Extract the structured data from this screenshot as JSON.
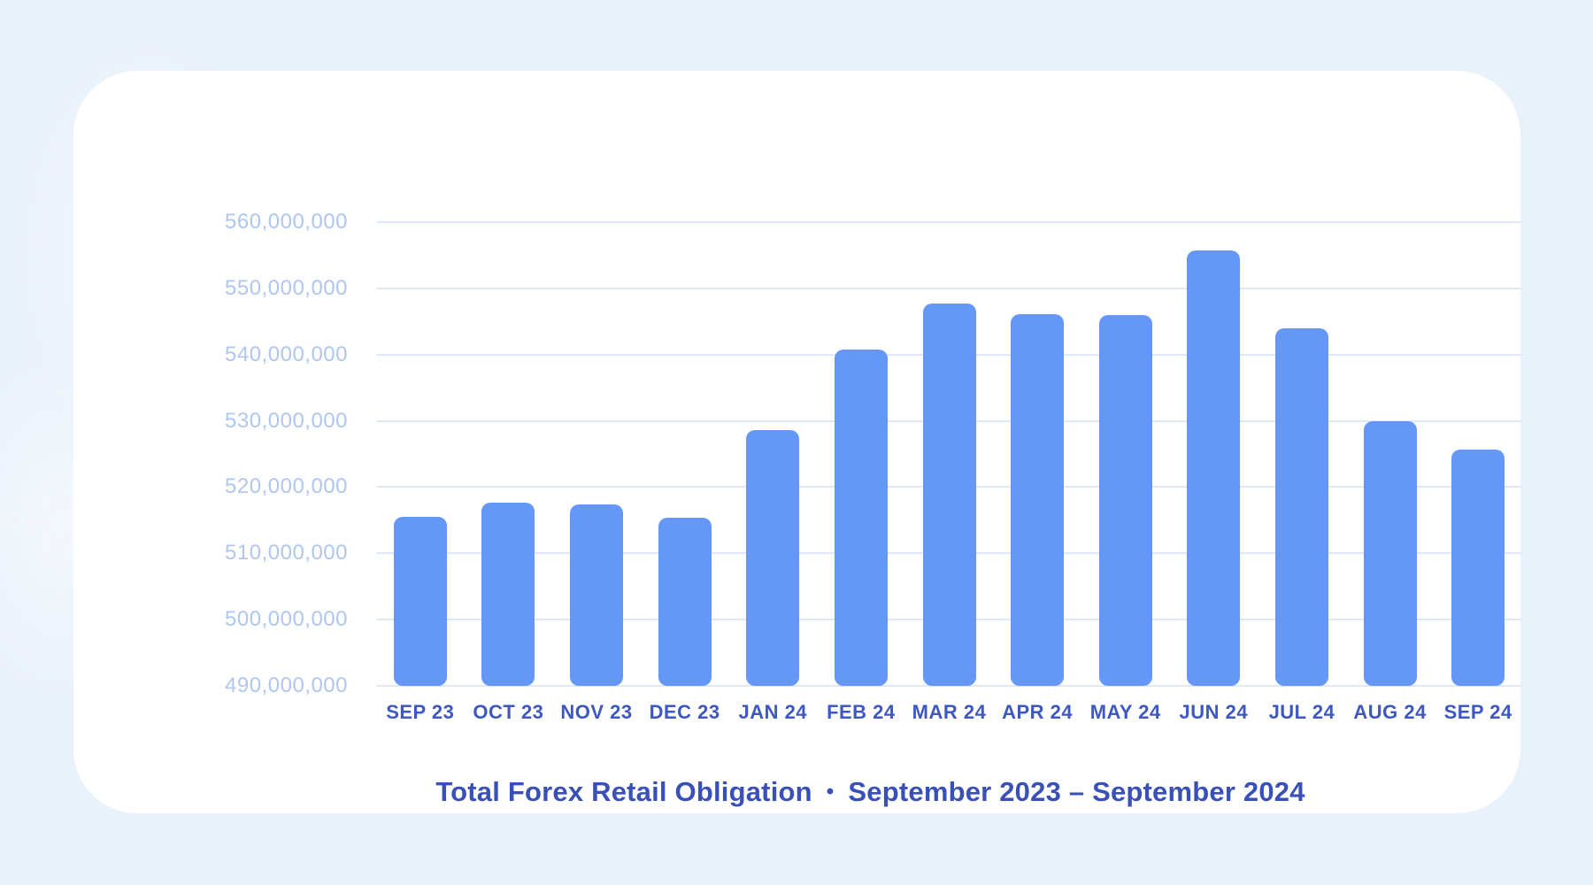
{
  "page": {
    "background_color": "#e9f1fa",
    "card_color": "#ffffff"
  },
  "chart_data": {
    "type": "bar",
    "title": "Total Forex Retail Obligation",
    "title_separator": "•",
    "subtitle": "September 2023 – September 2024",
    "xlabel": "",
    "ylabel": "",
    "legend": "none",
    "grid": true,
    "categories": [
      "SEP 23",
      "OCT 23",
      "NOV 23",
      "DEC 23",
      "JAN 24",
      "FEB 24",
      "MAR 24",
      "APR 24",
      "MAY 24",
      "JUN 24",
      "JUL 24",
      "AUG 24",
      "SEP 24"
    ],
    "values": [
      515500000,
      517600000,
      517400000,
      515400000,
      528600000,
      540800000,
      547700000,
      546100000,
      546000000,
      555700000,
      544000000,
      529900000,
      525700000
    ],
    "ylim": [
      490000000,
      560000000
    ],
    "y_ticks": [
      560000000,
      550000000,
      540000000,
      530000000,
      520000000,
      510000000,
      500000000,
      490000000
    ],
    "colors": {
      "bar": "#6497f8",
      "gridline": "#dfe7f8",
      "y_tick_label": "#aec6f0",
      "x_tick_label": "#3d58c2",
      "title": "#3a50b9"
    }
  }
}
